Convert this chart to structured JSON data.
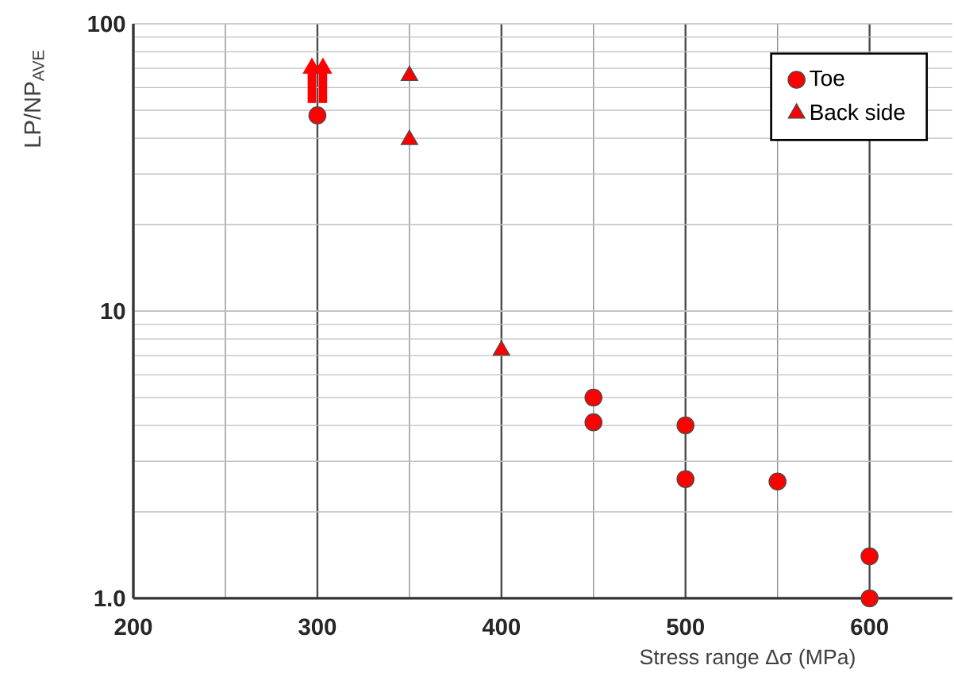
{
  "chart_data": {
    "type": "scatter",
    "xlabel": "Stress range  Δσ (MPa)",
    "ylabel": "LP/NP$_{AVE}$",
    "series": [
      {
        "name": "Toe",
        "marker": "circle",
        "color": "#ff0000",
        "x": [
          300,
          450,
          450,
          500,
          500,
          550,
          600,
          600
        ],
        "values": [
          48,
          5.0,
          4.1,
          4.0,
          2.6,
          2.55,
          1.4,
          1.0
        ]
      },
      {
        "name": "Back side",
        "marker": "triangle",
        "color": "#ff0000",
        "x": [
          350,
          350,
          400
        ],
        "values": [
          66,
          39.5,
          7.3
        ]
      },
      {
        "type": "line",
        "marker": "triangle",
        "color": "#ff0000",
        "x": [
          297,
          297
        ],
        "values": [
          53,
          70
        ]
      },
      {
        "type": "line",
        "marker": "triangle",
        "color": "#ff0000",
        "x": [
          303,
          303
        ],
        "values": [
          53,
          70
        ]
      }
    ],
    "xlim": [
      200,
      645
    ],
    "ylim": [
      1,
      100
    ],
    "log": "y",
    "xticks": [
      200,
      300,
      400,
      500,
      600
    ],
    "yticks": [
      {
        "value": 1,
        "label": "1.0"
      },
      10,
      100
    ],
    "grid": true,
    "legend": "top right"
  }
}
